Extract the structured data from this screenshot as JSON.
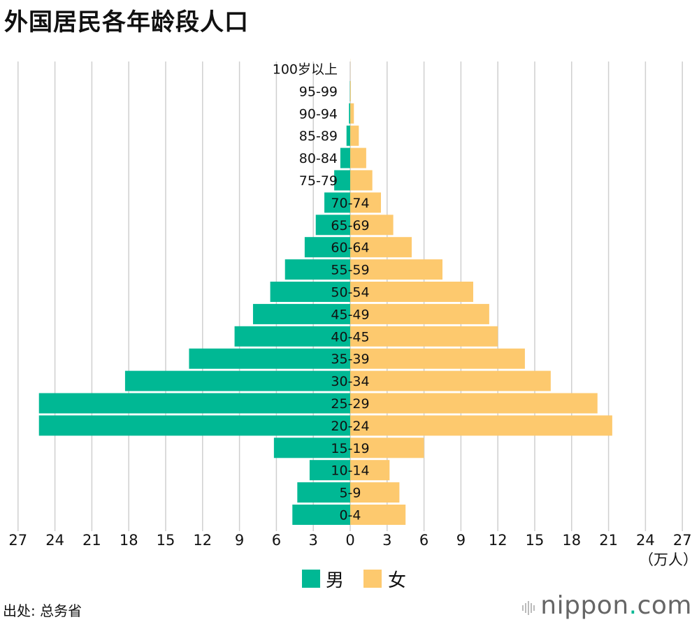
{
  "title": "外国居民各年龄段人口",
  "source": "出处: 总务省",
  "brand": {
    "name": "nippon",
    "dot": ".",
    "suffix": "com"
  },
  "chart_data": {
    "type": "bar",
    "orientation": "horizontal-population-pyramid",
    "categories": [
      "0-4",
      "5-9",
      "10-14",
      "15-19",
      "20-24",
      "25-29",
      "30-34",
      "35-39",
      "40-45",
      "45-49",
      "50-54",
      "55-59",
      "60-64",
      "65-69",
      "70-74",
      "75-79",
      "80-84",
      "85-89",
      "90-94",
      "95-99",
      "100岁以上"
    ],
    "series": [
      {
        "name": "男",
        "color": "#00b894",
        "values": [
          4.7,
          4.3,
          3.3,
          6.2,
          25.3,
          25.3,
          18.3,
          13.1,
          9.4,
          7.9,
          6.5,
          5.3,
          3.7,
          2.8,
          2.1,
          1.3,
          0.8,
          0.3,
          0.1,
          0.02,
          0.0
        ]
      },
      {
        "name": "女",
        "color": "#fdc96e",
        "values": [
          4.5,
          4.0,
          3.2,
          6.0,
          21.3,
          20.1,
          16.3,
          14.2,
          12.0,
          11.3,
          10.0,
          7.5,
          5.0,
          3.5,
          2.5,
          1.8,
          1.3,
          0.7,
          0.3,
          0.05,
          0.01
        ]
      }
    ],
    "xlim": [
      -27,
      27
    ],
    "xticks": [
      27,
      24,
      21,
      18,
      15,
      12,
      9,
      6,
      3,
      0,
      3,
      6,
      9,
      12,
      15,
      18,
      21,
      24,
      27
    ],
    "unit": "（万人）",
    "grid": true,
    "legend": [
      "男",
      "女"
    ],
    "legend_position": "bottom-center"
  }
}
